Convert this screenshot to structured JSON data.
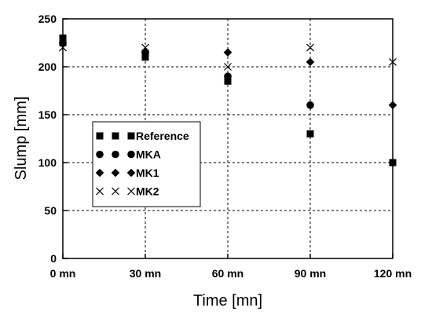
{
  "chart_data": {
    "type": "scatter",
    "title": "",
    "xlabel": "Time [mn]",
    "ylabel": "Slump [mm]",
    "categories": [
      "0 mn",
      "30 mn",
      "60 mn",
      "90 mn",
      "120 mn"
    ],
    "x": [
      0,
      30,
      60,
      90,
      120
    ],
    "xlim": [
      0,
      120
    ],
    "ylim": [
      0,
      250
    ],
    "yticks": [
      0,
      50,
      100,
      150,
      200,
      250
    ],
    "grid": true,
    "legend_position": "center-left",
    "series": [
      {
        "name": "Reference",
        "marker": "square",
        "values": [
          230,
          210,
          185,
          130,
          100
        ],
        "values_secondary": [
          225,
          null,
          188,
          null,
          null
        ]
      },
      {
        "name": "MKA",
        "marker": "circle",
        "values": [
          225,
          215,
          190,
          160,
          null
        ]
      },
      {
        "name": "MK1",
        "marker": "diamond",
        "values": [
          225,
          215,
          215,
          205,
          160
        ]
      },
      {
        "name": "MK2",
        "marker": "x",
        "values": [
          220,
          220,
          200,
          220,
          205
        ]
      }
    ],
    "colors": {
      "marker": "#000000",
      "grid": "#000000",
      "axis": "#000000"
    }
  }
}
